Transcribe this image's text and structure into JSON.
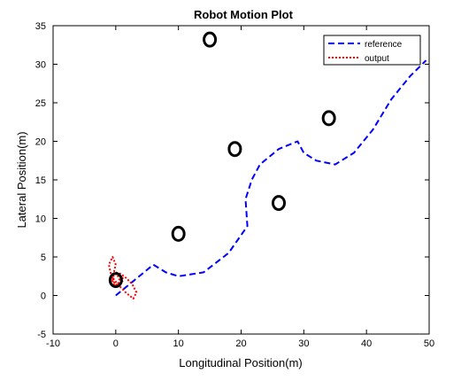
{
  "chart_data": {
    "type": "line",
    "title": "Robot Motion Plot",
    "xlabel": "Longitudinal Position(m)",
    "ylabel": "Lateral Position(m)",
    "xlim": [
      -10,
      50
    ],
    "ylim": [
      -5,
      35
    ],
    "xticks": [
      -10,
      0,
      10,
      20,
      30,
      40,
      50
    ],
    "yticks": [
      -5,
      0,
      5,
      10,
      15,
      20,
      25,
      30,
      35
    ],
    "grid": false,
    "legend_position": "top-right",
    "series": [
      {
        "name": "reference",
        "style": "dashed",
        "color": "#0000ff",
        "x": [
          0,
          3,
          6,
          8,
          10,
          14,
          18,
          21,
          20.7,
          21.7,
          23,
          26,
          29,
          30,
          32,
          35,
          38,
          41,
          44,
          47,
          49.5
        ],
        "y": [
          0,
          2,
          4,
          3,
          2.5,
          3,
          5.5,
          9,
          12.5,
          15,
          17,
          19,
          20,
          18.5,
          17.5,
          17,
          18.5,
          21.5,
          25.5,
          28.5,
          30.5
        ]
      },
      {
        "name": "output",
        "style": "dotted",
        "color": "#ff0000",
        "x": [
          0,
          0.8,
          1.6,
          2.6,
          3.3,
          2.8,
          1.7,
          0.5,
          -0.7,
          -1.1,
          -0.5,
          0,
          -0.3,
          -0.6,
          -0.2,
          0.3,
          0.6,
          0.2,
          -0.3,
          -0.5,
          0,
          0.7,
          1.2,
          1
        ],
        "y": [
          3,
          2.8,
          2.3,
          1.5,
          0.4,
          -0.4,
          0.3,
          1.3,
          2.5,
          4,
          5,
          4,
          3,
          2,
          1.3,
          1.3,
          2,
          2.8,
          2.7,
          2,
          1.4,
          1.5,
          2,
          2.5
        ]
      }
    ],
    "obstacles": {
      "color": "#000000",
      "points": [
        {
          "x": 15,
          "y": 33.2
        },
        {
          "x": 19,
          "y": 19
        },
        {
          "x": 34,
          "y": 23
        },
        {
          "x": 26,
          "y": 12
        },
        {
          "x": 10,
          "y": 8
        },
        {
          "x": 0,
          "y": 2
        }
      ]
    }
  }
}
